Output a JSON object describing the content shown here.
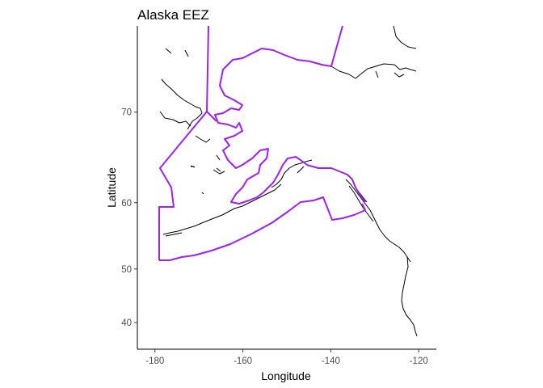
{
  "map": {
    "title": "Alaska EEZ",
    "xlabel": "Longitude",
    "ylabel": "Latitude",
    "x_ticks": [
      -180,
      -160,
      -140,
      -120
    ],
    "y_ticks": [
      40,
      50,
      60,
      70
    ],
    "x_range": [
      -184,
      -116
    ],
    "y_range": [
      34.4,
      76.5
    ],
    "projection": "mercator",
    "grid": false,
    "colors": {
      "eez": "#A020F0",
      "coastline": "#000000"
    },
    "layers": [
      {
        "name": "coastline",
        "kind": "line"
      },
      {
        "name": "eez-boundary",
        "kind": "line"
      }
    ]
  }
}
